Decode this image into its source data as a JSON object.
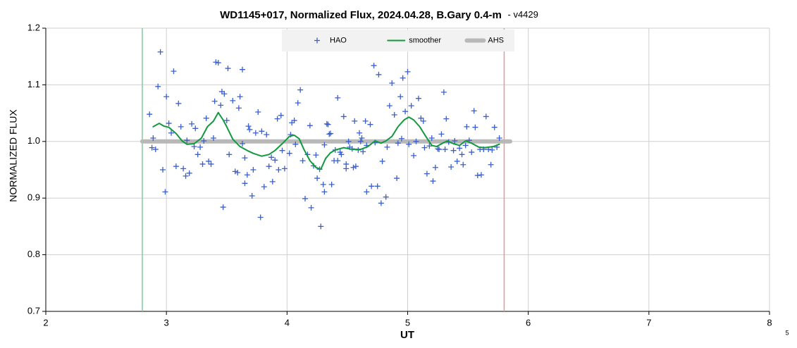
{
  "chart_data": {
    "type": "scatter",
    "title": "WD1145+017, Normalized Flux, 2024.04.28, B.Gary 0.4-m",
    "subtitle": "- v4429",
    "x_label": "UT",
    "y_label": "NORMALIZED FLUX",
    "corner_note": "5",
    "xlim": [
      2,
      8
    ],
    "ylim": [
      0.7,
      1.2
    ],
    "xticks": [
      2,
      3,
      4,
      5,
      6,
      7,
      8
    ],
    "yticks": [
      0.7,
      0.8,
      0.9,
      {
        "value": 1,
        "label": "1.0"
      },
      1.1,
      1.2
    ],
    "grid": true,
    "legend": "top",
    "vlines": [
      {
        "x": 2.8,
        "color": "#7fcca0"
      },
      {
        "x": 5.8,
        "color": "#e09a9a"
      }
    ],
    "series": [
      {
        "name": "HAO",
        "kind": "scatter",
        "color": "#3a5fcd",
        "x": [
          2.86,
          2.88,
          2.89,
          2.91,
          2.93,
          2.95,
          2.97,
          2.99,
          3.0,
          3.02,
          3.04,
          3.06,
          3.08,
          3.1,
          3.12,
          3.14,
          3.16,
          3.17,
          3.19,
          3.21,
          3.23,
          3.24,
          3.26,
          3.28,
          3.3,
          3.31,
          3.33,
          3.35,
          3.37,
          3.39,
          3.4,
          3.41,
          3.43,
          3.45,
          3.46,
          3.47,
          3.48,
          3.5,
          3.51,
          3.52,
          3.55,
          3.57,
          3.59,
          3.6,
          3.61,
          3.63,
          3.63,
          3.65,
          3.65,
          3.67,
          3.68,
          3.69,
          3.71,
          3.72,
          3.74,
          3.76,
          3.78,
          3.79,
          3.81,
          3.83,
          3.85,
          3.87,
          3.88,
          3.9,
          3.92,
          3.93,
          3.95,
          3.96,
          3.98,
          4.02,
          4.03,
          4.04,
          4.06,
          4.07,
          4.09,
          4.11,
          4.13,
          4.15,
          4.17,
          4.19,
          4.2,
          4.22,
          4.24,
          4.25,
          4.27,
          4.28,
          4.3,
          4.31,
          4.31,
          4.33,
          4.34,
          4.35,
          4.36,
          4.37,
          4.39,
          4.4,
          4.42,
          4.42,
          4.44,
          4.45,
          4.47,
          4.49,
          4.49,
          4.51,
          4.52,
          4.54,
          4.55,
          4.56,
          4.57,
          4.59,
          4.6,
          4.61,
          4.62,
          4.63,
          4.65,
          4.66,
          4.66,
          4.69,
          4.7,
          4.72,
          4.73,
          4.75,
          4.76,
          4.78,
          4.79,
          4.82,
          4.83,
          4.85,
          4.87,
          4.89,
          4.91,
          4.92,
          4.94,
          4.95,
          4.96,
          4.98,
          5.0,
          5.01,
          5.03,
          5.05,
          5.07,
          5.09,
          5.11,
          5.13,
          5.14,
          5.16,
          5.18,
          5.2,
          5.21,
          5.23,
          5.25,
          5.26,
          5.28,
          5.3,
          5.31,
          5.32,
          5.34,
          5.36,
          5.38,
          5.39,
          5.41,
          5.43,
          5.45,
          5.46,
          5.48,
          5.49,
          5.51,
          5.53,
          5.55,
          5.56,
          5.58,
          5.6,
          5.61,
          5.63,
          5.65,
          5.67,
          5.69,
          5.7,
          5.72,
          5.74,
          5.76
        ],
        "values": [
          1.048,
          0.989,
          1.006,
          0.986,
          1.097,
          1.158,
          0.95,
          0.911,
          1.079,
          1.032,
          1.015,
          1.124,
          0.956,
          1.067,
          1.026,
          0.952,
          0.939,
          1.002,
          0.944,
          1.031,
          0.991,
          1.023,
          0.977,
          0.99,
          0.96,
          1.001,
          1.041,
          0.965,
          0.96,
          1.006,
          1.071,
          1.14,
          1.139,
          1.064,
          1.088,
          0.884,
          1.084,
          1.037,
          1.129,
          0.977,
          1.072,
          0.947,
          0.945,
          1.059,
          1.079,
          1.127,
          0.996,
          0.926,
          0.971,
          0.941,
          1.027,
          1.021,
          0.904,
          0.95,
          1.015,
          1.052,
          0.866,
          1.018,
          0.92,
          1.012,
          0.956,
          0.972,
          0.929,
          0.967,
          1.04,
          0.95,
          1.046,
          0.984,
          0.952,
          0.979,
          1.012,
          1.033,
          1.037,
          0.995,
          1.068,
          1.091,
          0.966,
          0.899,
          0.977,
          1.028,
          0.883,
          0.957,
          0.976,
          0.935,
          0.951,
          0.85,
          0.924,
          0.994,
          0.911,
          1.031,
          1.03,
          1.013,
          1.014,
          0.924,
          0.966,
          0.985,
          1.077,
          0.966,
          0.981,
          0.977,
          1.044,
          0.952,
          0.96,
          1.0,
          0.99,
          0.987,
          0.954,
          1.036,
          0.956,
          0.985,
          1.015,
          1.0,
          1.006,
          0.982,
          1.036,
          0.993,
          0.911,
          1.03,
          0.921,
          1.134,
          0.998,
          0.921,
          1.118,
          0.891,
          0.965,
          0.902,
          0.99,
          1.063,
          1.103,
          1.047,
          0.935,
          0.997,
          1.079,
          1.005,
          1.112,
          1.053,
          1.123,
          0.995,
          1.063,
          0.975,
          1.0,
          1.076,
          1.041,
          1.036,
          0.989,
          0.943,
          0.992,
          1.006,
          0.93,
          0.954,
          0.987,
          0.986,
          1.013,
          1.087,
          0.986,
          1.04,
          0.999,
          0.955,
          0.984,
          1.001,
          0.965,
          0.988,
          0.977,
          0.959,
          0.993,
          1.026,
          1.002,
          0.981,
          1.054,
          1.025,
          0.94,
          0.986,
          0.941,
          0.986,
          1.044,
          0.986,
          0.959,
          0.985,
          1.025,
          0.99,
          1.006
        ]
      },
      {
        "name": "smoother",
        "kind": "line",
        "color": "#12993f",
        "x": [
          2.89,
          2.94,
          2.98,
          3.02,
          3.08,
          3.13,
          3.17,
          3.23,
          3.29,
          3.34,
          3.39,
          3.43,
          3.47,
          3.5,
          3.55,
          3.61,
          3.67,
          3.72,
          3.79,
          3.85,
          3.9,
          3.96,
          4.02,
          4.06,
          4.1,
          4.14,
          4.19,
          4.24,
          4.28,
          4.32,
          4.36,
          4.4,
          4.47,
          4.54,
          4.61,
          4.67,
          4.73,
          4.78,
          4.82,
          4.87,
          4.92,
          4.97,
          5.01,
          5.05,
          5.1,
          5.15,
          5.2,
          5.24,
          5.29,
          5.33,
          5.38,
          5.43,
          5.48,
          5.53,
          5.59,
          5.64,
          5.71,
          5.76
        ],
        "values": [
          1.026,
          1.032,
          1.027,
          1.025,
          1.014,
          1.001,
          0.995,
          0.996,
          1.006,
          1.026,
          1.036,
          1.051,
          1.038,
          1.026,
          1.004,
          0.991,
          0.984,
          0.979,
          0.974,
          0.977,
          0.984,
          0.996,
          1.009,
          1.011,
          1.005,
          0.986,
          0.966,
          0.954,
          0.951,
          0.97,
          0.98,
          0.985,
          0.989,
          0.986,
          0.986,
          0.991,
          1.001,
          0.997,
          1.001,
          1.009,
          1.026,
          1.038,
          1.043,
          1.038,
          1.026,
          1.009,
          0.993,
          0.991,
          0.997,
          1.001,
          0.996,
          0.993,
          1.001,
          0.997,
          0.99,
          0.989,
          0.991,
          0.995
        ]
      },
      {
        "name": "AHS",
        "kind": "line",
        "color": "#b8b8b8",
        "width": 6,
        "x": [
          2.8,
          5.85
        ],
        "values": [
          1,
          1
        ]
      }
    ]
  }
}
